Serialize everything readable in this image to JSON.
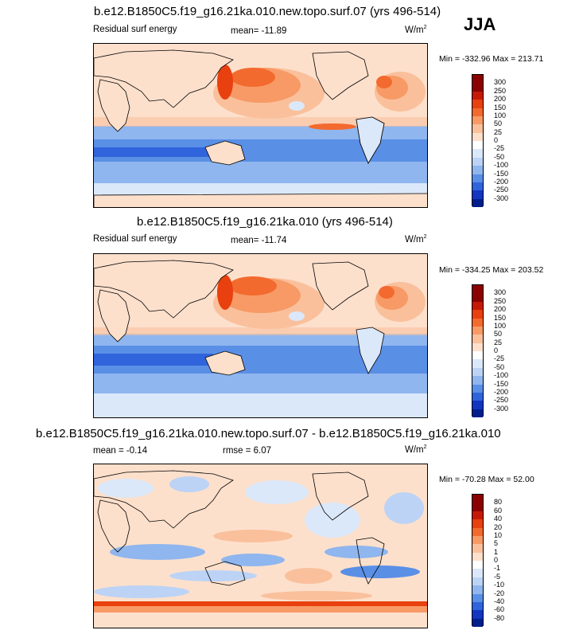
{
  "season": "JJA",
  "panels": [
    {
      "title": "b.e12.B1850C5.f19_g16.21ka.010.new.topo.surf.07 (yrs 496-514)",
      "left_label": "Residual surf energy",
      "stat_label": "mean= -11.89",
      "units": "W/m",
      "units_exp": "2",
      "minmax": "Min = -332.96 Max = 213.71",
      "levels": [
        "300",
        "250",
        "200",
        "150",
        "100",
        "50",
        "25",
        "0",
        "-25",
        "-50",
        "-100",
        "-150",
        "-200",
        "-250",
        "-300"
      ],
      "colors": [
        "#8b0000",
        "#c41a05",
        "#e8400e",
        "#f36a2e",
        "#f79a66",
        "#fac09c",
        "#fde0cc",
        "#ffffff",
        "#dbe8f9",
        "#bcd3f5",
        "#8fb6ee",
        "#5a8fe6",
        "#2f64dc",
        "#1235c2",
        "#001e8c"
      ]
    },
    {
      "title": "b.e12.B1850C5.f19_g16.21ka.010 (yrs 496-514)",
      "left_label": "Residual surf energy",
      "stat_label": "mean= -11.74",
      "units": "W/m",
      "units_exp": "2",
      "minmax": "Min = -334.25 Max = 203.52",
      "levels": [
        "300",
        "250",
        "200",
        "150",
        "100",
        "50",
        "25",
        "0",
        "-25",
        "-50",
        "-100",
        "-150",
        "-200",
        "-250",
        "-300"
      ],
      "colors": [
        "#8b0000",
        "#c41a05",
        "#e8400e",
        "#f36a2e",
        "#f79a66",
        "#fac09c",
        "#fde0cc",
        "#ffffff",
        "#dbe8f9",
        "#bcd3f5",
        "#8fb6ee",
        "#5a8fe6",
        "#2f64dc",
        "#1235c2",
        "#001e8c"
      ]
    },
    {
      "title": "b.e12.B1850C5.f19_g16.21ka.010.new.topo.surf.07 - b.e12.B1850C5.f19_g16.21ka.010",
      "left_label": "mean =  -0.14",
      "stat_label": "rmse =  6.07",
      "units": "W/m",
      "units_exp": "2",
      "minmax": "Min = -70.28 Max = 52.00",
      "levels": [
        "80",
        "60",
        "40",
        "20",
        "10",
        "5",
        "1",
        "0",
        "-1",
        "-5",
        "-10",
        "-20",
        "-40",
        "-60",
        "-80"
      ],
      "colors": [
        "#8b0000",
        "#c41a05",
        "#e8400e",
        "#f36a2e",
        "#f79a66",
        "#fac09c",
        "#fde0cc",
        "#ffffff",
        "#dbe8f9",
        "#bcd3f5",
        "#8fb6ee",
        "#5a8fe6",
        "#2f64dc",
        "#1235c2",
        "#001e8c"
      ]
    }
  ]
}
